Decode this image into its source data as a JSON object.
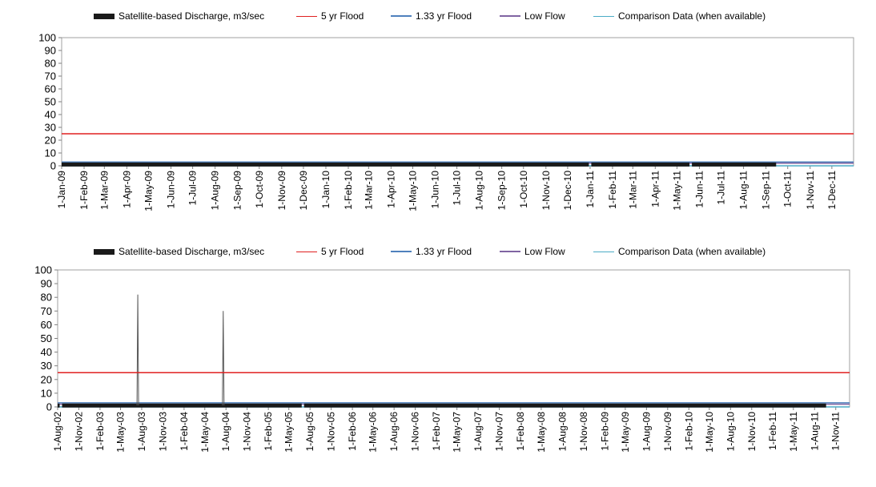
{
  "colors": {
    "discharge": "#1a1a1a",
    "flood5": "#e02020",
    "flood133": "#4f81bd",
    "lowflow": "#8064a2",
    "comparison": "#4bacc6",
    "frame": "#a0a0a0",
    "axis_text": "#000000"
  },
  "chart_data": [
    {
      "type": "line",
      "legend": [
        {
          "name": "Satellite-based Discharge, m3/sec",
          "key": "discharge"
        },
        {
          "name": "5 yr Flood",
          "key": "flood5"
        },
        {
          "name": "1.33 yr Flood",
          "key": "flood133"
        },
        {
          "name": "Low Flow",
          "key": "lowflow"
        },
        {
          "name": "Comparison Data (when available)",
          "key": "comparison"
        }
      ],
      "ylim": [
        0,
        100
      ],
      "yticks": [
        0,
        10,
        20,
        30,
        40,
        50,
        60,
        70,
        80,
        90,
        100
      ],
      "xticks": [
        "1-Jan-09",
        "1-Feb-09",
        "1-Mar-09",
        "1-Apr-09",
        "1-May-09",
        "1-Jun-09",
        "1-Jul-09",
        "1-Aug-09",
        "1-Sep-09",
        "1-Oct-09",
        "1-Nov-09",
        "1-Dec-09",
        "1-Jan-10",
        "1-Feb-10",
        "1-Mar-10",
        "1-Apr-10",
        "1-May-10",
        "1-Jun-10",
        "1-Jul-10",
        "1-Aug-10",
        "1-Sep-10",
        "1-Oct-10",
        "1-Nov-10",
        "1-Dec-10",
        "1-Jan-11",
        "1-Feb-11",
        "1-Mar-11",
        "1-Apr-11",
        "1-May-11",
        "1-Jun-11",
        "1-Jul-11",
        "1-Aug-11",
        "1-Sep-11",
        "1-Oct-11",
        "1-Nov-11",
        "1-Dec-11"
      ],
      "xrange": [
        "1-Jan-09",
        "31-Dec-11"
      ],
      "series": {
        "flood5": 25,
        "flood133": 3,
        "lowflow": 2,
        "comparison": 0,
        "discharge": {
          "base": 1,
          "end": "15-Sep-11",
          "gaps": [
            "1-Jan-11",
            "20-May-11"
          ],
          "spikes": []
        }
      }
    },
    {
      "type": "line",
      "legend": [
        {
          "name": "Satellite-based Discharge, m3/sec",
          "key": "discharge"
        },
        {
          "name": "5 yr Flood",
          "key": "flood5"
        },
        {
          "name": "1.33 yr Flood",
          "key": "flood133"
        },
        {
          "name": "Low Flow",
          "key": "lowflow"
        },
        {
          "name": "Comparison Data (when available)",
          "key": "comparison"
        }
      ],
      "ylim": [
        0,
        100
      ],
      "yticks": [
        0,
        10,
        20,
        30,
        40,
        50,
        60,
        70,
        80,
        90,
        100
      ],
      "xticks": [
        "1-Aug-02",
        "1-Nov-02",
        "1-Feb-03",
        "1-May-03",
        "1-Aug-03",
        "1-Nov-03",
        "1-Feb-04",
        "1-May-04",
        "1-Aug-04",
        "1-Nov-04",
        "1-Feb-05",
        "1-May-05",
        "1-Aug-05",
        "1-Nov-05",
        "1-Feb-06",
        "1-May-06",
        "1-Aug-06",
        "1-Nov-06",
        "1-Feb-07",
        "1-May-07",
        "1-Aug-07",
        "1-Nov-07",
        "1-Feb-08",
        "1-May-08",
        "1-Aug-08",
        "1-Nov-08",
        "1-Feb-09",
        "1-May-09",
        "1-Aug-09",
        "1-Nov-09",
        "1-Feb-10",
        "1-May-10",
        "1-Aug-10",
        "1-Nov-10",
        "1-Feb-11",
        "1-May-11",
        "1-Aug-11",
        "1-Nov-11"
      ],
      "xrange": [
        "1-Aug-02",
        "31-Dec-11"
      ],
      "series": {
        "flood5": 25,
        "flood133": 3,
        "lowflow": 2,
        "comparison": 0,
        "discharge": {
          "base": 1,
          "end": "20-Sep-11",
          "gaps": [
            "15-Aug-02",
            "1-Jul-05"
          ],
          "spikes": [
            {
              "x": "15-Jul-03",
              "y": 82
            },
            {
              "x": "20-Jul-04",
              "y": 70
            }
          ]
        }
      }
    }
  ]
}
